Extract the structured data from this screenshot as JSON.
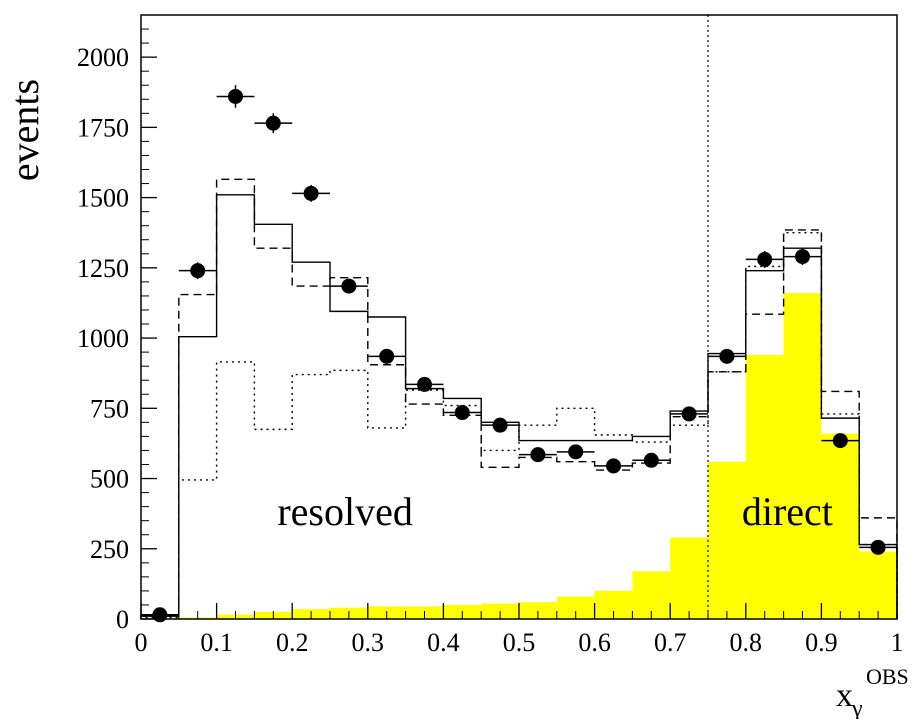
{
  "chart_data": {
    "type": "histogram",
    "xlabel": "x",
    "xlabel_sub": "γ",
    "xlabel_sup": "OBS",
    "ylabel": "events",
    "xlim": [
      0,
      1
    ],
    "ylim": [
      0,
      2150
    ],
    "x_ticks": [
      "0",
      "0.1",
      "0.2",
      "0.3",
      "0.4",
      "0.5",
      "0.6",
      "0.7",
      "0.8",
      "0.9",
      "1"
    ],
    "y_ticks": [
      "0",
      "250",
      "500",
      "750",
      "1000",
      "1250",
      "1500",
      "1750",
      "2000"
    ],
    "bin_edges": [
      0,
      0.05,
      0.1,
      0.15,
      0.2,
      0.25,
      0.3,
      0.35,
      0.4,
      0.45,
      0.5,
      0.55,
      0.6,
      0.65,
      0.7,
      0.75,
      0.8,
      0.85,
      0.9,
      0.95,
      1.0
    ],
    "series": [
      {
        "style": "points",
        "x": [
          0.025,
          0.075,
          0.125,
          0.175,
          0.225,
          0.275,
          0.325,
          0.375,
          0.425,
          0.475,
          0.525,
          0.575,
          0.625,
          0.675,
          0.725,
          0.775,
          0.825,
          0.875,
          0.925,
          0.975
        ],
        "y": [
          15,
          1240,
          1860,
          1765,
          1515,
          1185,
          935,
          835,
          735,
          690,
          585,
          595,
          545,
          565,
          730,
          935,
          1280,
          1290,
          635,
          255
        ],
        "yerr": [
          5,
          30,
          40,
          35,
          30,
          25,
          25,
          20,
          20,
          20,
          18,
          18,
          18,
          18,
          20,
          25,
          30,
          30,
          20,
          12
        ]
      },
      {
        "style": "solid",
        "values": [
          10,
          1005,
          1510,
          1405,
          1270,
          1095,
          1075,
          820,
          785,
          700,
          635,
          635,
          635,
          650,
          740,
          945,
          1240,
          1320,
          715,
          265
        ]
      },
      {
        "style": "dashed",
        "values": [
          10,
          1155,
          1565,
          1320,
          1185,
          1215,
          905,
          765,
          725,
          540,
          575,
          560,
          530,
          555,
          720,
          880,
          1085,
          1385,
          810,
          360
        ]
      },
      {
        "style": "dotted",
        "values": [
          5,
          495,
          915,
          675,
          870,
          885,
          680,
          815,
          760,
          600,
          690,
          750,
          655,
          630,
          690,
          880,
          1255,
          1375,
          730,
          265
        ]
      },
      {
        "style": "filled",
        "color": "#ffff00",
        "values": [
          0,
          5,
          15,
          25,
          35,
          40,
          45,
          45,
          50,
          55,
          60,
          80,
          100,
          170,
          290,
          560,
          940,
          1160,
          660,
          240
        ]
      }
    ],
    "annotations": [
      {
        "text": "resolved",
        "x": 0.27,
        "y": 335
      },
      {
        "text": "direct",
        "x": 0.855,
        "y": 335
      }
    ],
    "vline": {
      "x": 0.75,
      "style": "dotted"
    }
  }
}
